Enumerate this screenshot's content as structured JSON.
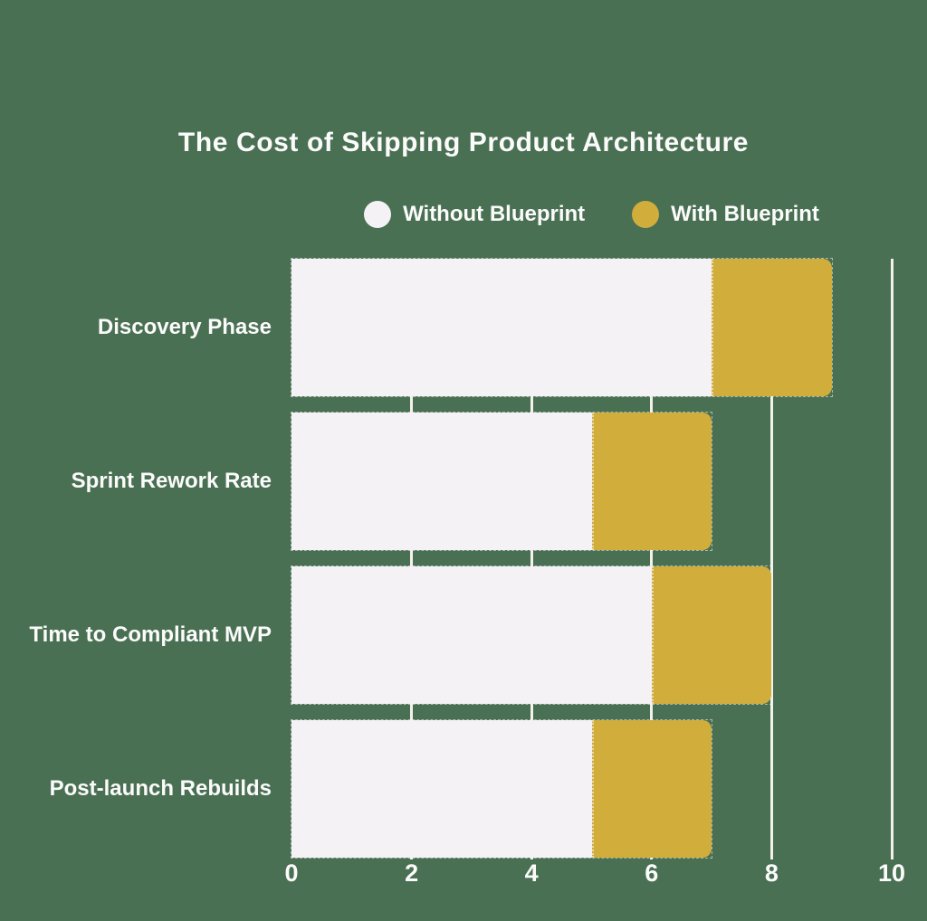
{
  "title": {
    "text": "The Cost of Skipping Product Architecture"
  },
  "legend": [
    {
      "label": "Without Blueprint",
      "color": "#f5f2f6"
    },
    {
      "label": "With Blueprint",
      "color": "#d1ad3c"
    }
  ],
  "colors": {
    "background": "#497052",
    "grid": "#f4f1ec",
    "text": "#fcfbfc",
    "without_blueprint": "#f5f2f6",
    "with_blueprint": "#d1ad3c"
  },
  "chart_data": {
    "type": "bar",
    "orientation": "horizontal",
    "stacked": true,
    "title": "The Cost of Skipping Product Architecture",
    "categories": [
      "Discovery Phase",
      "Sprint Rework Rate",
      "Time to Compliant MVP",
      "Post-launch Rebuilds"
    ],
    "series": [
      {
        "name": "Without Blueprint",
        "color": "#f5f2f6",
        "values": [
          7,
          5,
          6,
          5
        ]
      },
      {
        "name": "With Blueprint",
        "color": "#d1ad3c",
        "values": [
          2,
          2,
          2,
          2
        ]
      }
    ],
    "bar_end_values": [
      9,
      7,
      8,
      7
    ],
    "xlabel": "",
    "ylabel": "",
    "xlim": [
      0,
      10
    ],
    "x_ticks": [
      0,
      2,
      4,
      6,
      8,
      10
    ],
    "grid": true,
    "legend_position": "top"
  }
}
